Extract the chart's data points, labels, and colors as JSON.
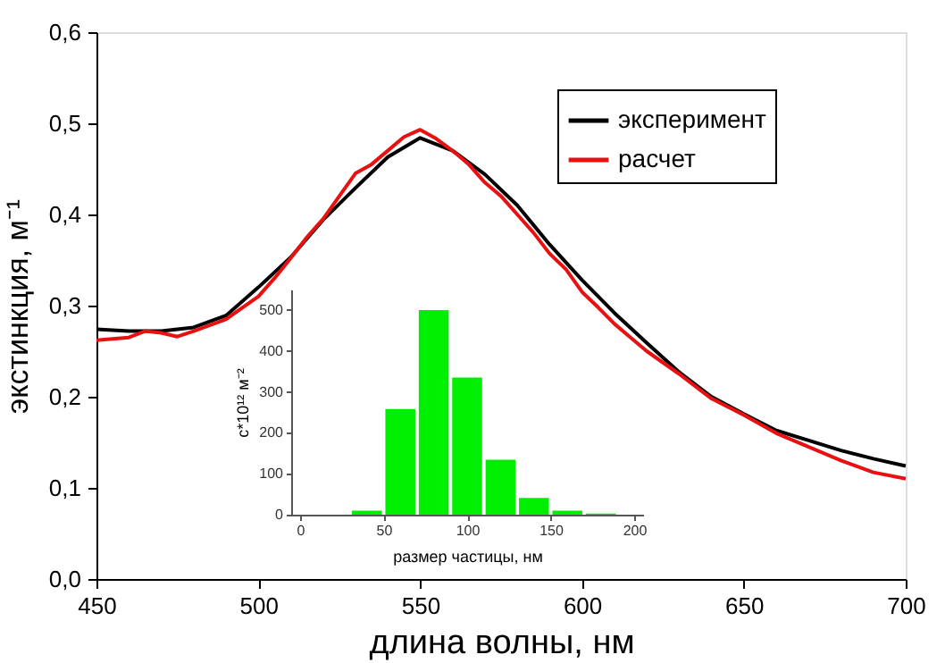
{
  "chart_data": [
    {
      "type": "line",
      "xlabel": "длина волны, нм",
      "ylabel": "экстинкция, м⁻¹",
      "xlim": [
        450,
        700
      ],
      "xticks": [
        450,
        500,
        550,
        600,
        650,
        700
      ],
      "ylim": [
        0,
        0.6
      ],
      "yticks": [
        {
          "value": 0,
          "label": "0,0"
        },
        {
          "value": 0.1,
          "label": "0,1"
        },
        {
          "value": 0.2,
          "label": "0,2"
        },
        {
          "value": 0.3,
          "label": "0,3"
        },
        {
          "value": 0.4,
          "label": "0,4"
        },
        {
          "value": 0.5,
          "label": "0,5"
        },
        {
          "value": 0.6,
          "label": "0,6"
        }
      ],
      "grid": false,
      "legend": "top right",
      "line_style": "solid",
      "marker": "none",
      "series": [
        {
          "name": "эксперимент",
          "color": "#000000",
          "x": [
            450,
            460,
            470,
            480,
            490,
            500,
            510,
            520,
            530,
            540,
            550,
            560,
            570,
            580,
            590,
            600,
            610,
            620,
            630,
            640,
            650,
            660,
            670,
            680,
            690,
            700
          ],
          "values": [
            0.274,
            0.272,
            0.272,
            0.276,
            0.289,
            0.32,
            0.353,
            0.394,
            0.429,
            0.463,
            0.484,
            0.47,
            0.444,
            0.41,
            0.367,
            0.328,
            0.292,
            0.259,
            0.227,
            0.2,
            0.181,
            0.163,
            0.152,
            0.141,
            0.132,
            0.124
          ]
        },
        {
          "name": "расчет",
          "color": "#e81010",
          "x": [
            450,
            460,
            465,
            470,
            475,
            480,
            490,
            500,
            505,
            510,
            515,
            520,
            525,
            530,
            535,
            540,
            545,
            550,
            555,
            560,
            565,
            570,
            575,
            580,
            585,
            590,
            595,
            600,
            605,
            610,
            615,
            620,
            630,
            640,
            650,
            660,
            670,
            680,
            690,
            700
          ],
          "values": [
            0.262,
            0.265,
            0.272,
            0.27,
            0.266,
            0.272,
            0.285,
            0.31,
            0.33,
            0.352,
            0.375,
            0.395,
            0.42,
            0.445,
            0.455,
            0.47,
            0.485,
            0.493,
            0.483,
            0.47,
            0.455,
            0.435,
            0.42,
            0.4,
            0.38,
            0.357,
            0.34,
            0.315,
            0.298,
            0.28,
            0.265,
            0.25,
            0.225,
            0.198,
            0.18,
            0.16,
            0.145,
            0.13,
            0.117,
            0.11
          ]
        }
      ]
    },
    {
      "type": "bar",
      "xlabel": "размер частицы, нм",
      "ylabel": "с*10¹² м⁻²",
      "xlim": [
        0,
        200
      ],
      "xticks": [
        0,
        50,
        100,
        150,
        200
      ],
      "ylim": [
        0,
        550
      ],
      "yticks": [
        0,
        100,
        200,
        300,
        400,
        500
      ],
      "grid": false,
      "color": "#00ee00",
      "x": [
        40,
        60,
        80,
        100,
        120,
        140,
        160,
        180
      ],
      "values": [
        10,
        258,
        500,
        335,
        134,
        41,
        10,
        3
      ]
    }
  ]
}
